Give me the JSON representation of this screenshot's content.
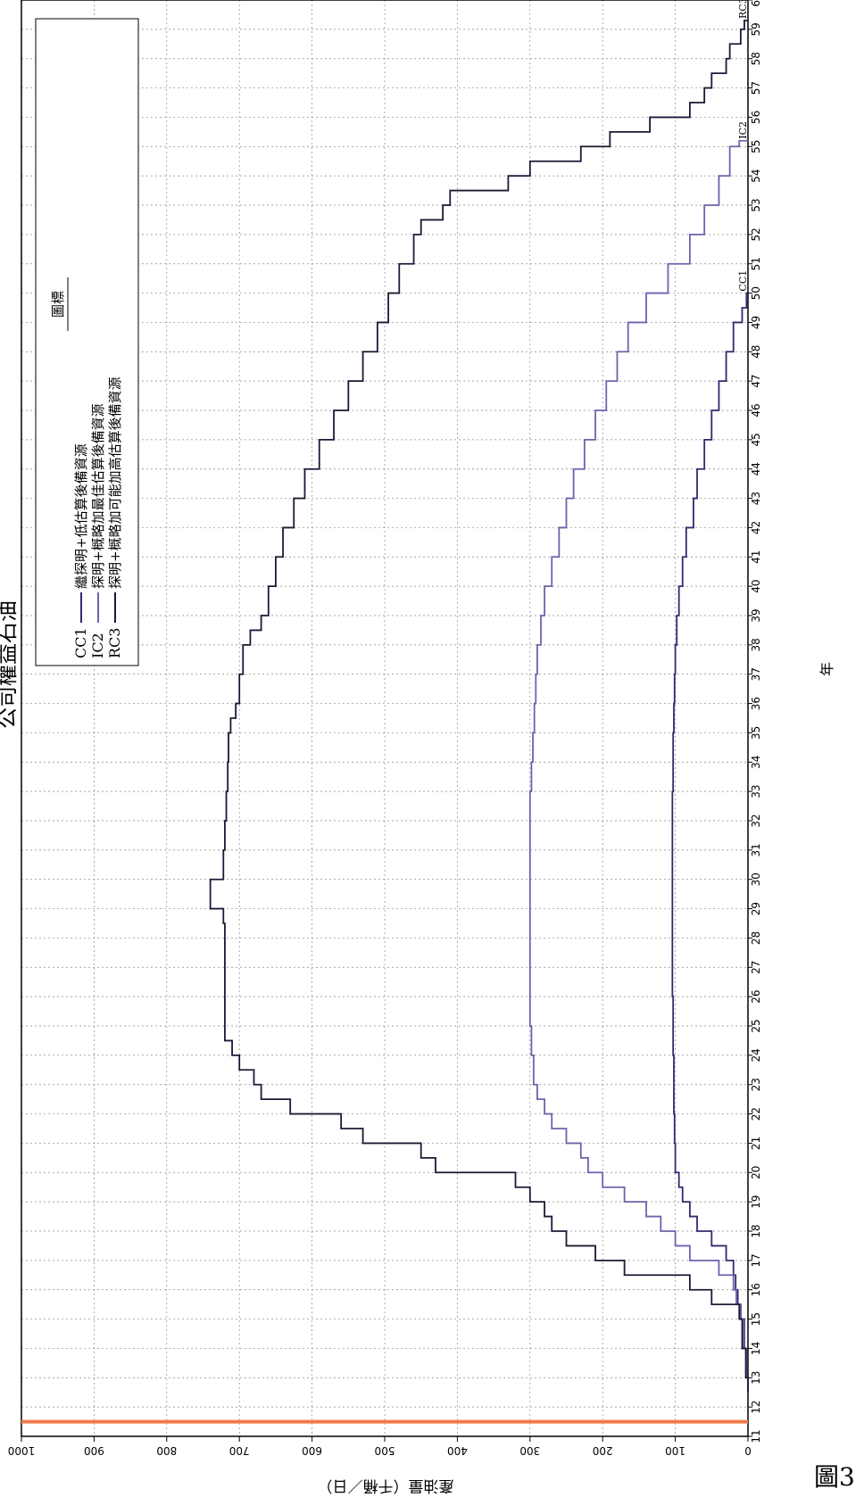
{
  "title": "公司權益石油",
  "figure_label": "圖3",
  "chart_data": {
    "type": "line",
    "orientation": "rotated-90-clockwise",
    "xlabel": "年",
    "ylabel": "產油量（千桶／日）",
    "xlim": [
      11,
      60
    ],
    "ylim": [
      0,
      1000
    ],
    "x_ticks": [
      "11",
      "12",
      "13",
      "14",
      "15",
      "16",
      "17",
      "18",
      "19",
      "20",
      "21",
      "22",
      "23",
      "24",
      "25",
      "26",
      "27",
      "28",
      "29",
      "30",
      "31",
      "32",
      "33",
      "34",
      "35",
      "36",
      "37",
      "38",
      "39",
      "40",
      "41",
      "42",
      "43",
      "44",
      "45",
      "46",
      "47",
      "48",
      "49",
      "50",
      "51",
      "52",
      "53",
      "54",
      "55",
      "56",
      "57",
      "58",
      "59",
      "60"
    ],
    "y_ticks": [
      "0",
      "100",
      "200",
      "300",
      "400",
      "500",
      "600",
      "700",
      "800",
      "900",
      "1000"
    ],
    "grid": true,
    "legend": {
      "title": "圖標",
      "placement": "top-left (rotated)",
      "entries": [
        {
          "code": "CC1",
          "desc": "繼探明+低估算後備資源"
        },
        {
          "code": "IC2",
          "desc": "探明+概略加最佳估算後備資源"
        },
        {
          "code": "RC3",
          "desc": "探明+概略加可能加高估算後備資源"
        }
      ]
    },
    "vertical_marker": {
      "x": 11.5,
      "color": "#f07a4a"
    },
    "series": [
      {
        "name": "CC1",
        "color": "#2d2b6e",
        "x": [
          12.5,
          13,
          14,
          15,
          15.5,
          16,
          16.5,
          17,
          17.5,
          18,
          18.5,
          19,
          19.5,
          20,
          21,
          22,
          23,
          24,
          25,
          26,
          27,
          28,
          29,
          30,
          31,
          32,
          33,
          34,
          35,
          36,
          37,
          38,
          39,
          40,
          41,
          42,
          43,
          44,
          45,
          46,
          47,
          48,
          49,
          49.5,
          50
        ],
        "y": [
          0,
          2,
          5,
          10,
          14,
          17,
          20,
          30,
          50,
          70,
          80,
          90,
          95,
          100,
          101,
          102,
          102,
          103,
          103,
          104,
          104,
          104,
          104,
          104,
          104,
          104,
          103,
          103,
          102,
          101,
          100,
          98,
          95,
          90,
          85,
          75,
          70,
          60,
          50,
          40,
          30,
          20,
          8,
          2,
          0
        ]
      },
      {
        "name": "IC2",
        "color": "#6a64ad",
        "x": [
          12.5,
          13,
          14,
          15,
          15.5,
          16,
          16.5,
          17,
          17.5,
          18,
          18.5,
          19,
          19.5,
          20,
          20.5,
          21,
          21.5,
          22,
          22.5,
          23,
          24,
          25,
          26,
          27,
          28,
          29,
          30,
          31,
          32,
          33,
          34,
          35,
          36,
          37,
          38,
          39,
          40,
          41,
          42,
          43,
          44,
          45,
          46,
          47,
          48,
          49,
          50,
          51,
          52,
          53,
          54,
          55,
          55.2
        ],
        "y": [
          0,
          2,
          6,
          11,
          16,
          20,
          40,
          80,
          100,
          120,
          140,
          170,
          200,
          220,
          230,
          250,
          270,
          280,
          290,
          295,
          298,
          300,
          300,
          300,
          300,
          300,
          300,
          300,
          300,
          298,
          296,
          294,
          292,
          290,
          285,
          280,
          270,
          260,
          250,
          240,
          225,
          210,
          195,
          180,
          165,
          140,
          110,
          80,
          60,
          40,
          25,
          12,
          0
        ]
      },
      {
        "name": "RC3",
        "color": "#1c1936",
        "x": [
          12.5,
          13,
          14,
          15,
          15.5,
          16,
          16.5,
          17,
          17.5,
          18,
          18.5,
          19,
          19.5,
          20,
          20.5,
          21,
          21.5,
          22,
          22.5,
          23,
          23.5,
          24,
          24.5,
          25,
          26,
          27,
          28,
          28.5,
          29,
          29.5,
          30,
          31,
          32,
          33,
          34,
          35,
          35.5,
          36,
          37,
          38,
          38.5,
          39,
          40,
          41,
          42,
          43,
          44,
          45,
          46,
          47,
          48,
          49,
          50,
          51,
          52,
          52.5,
          53,
          53.5,
          54,
          54.5,
          55,
          55.5,
          56,
          56.5,
          57,
          57.5,
          58,
          58.5,
          59,
          59.3
        ],
        "y": [
          0,
          3,
          8,
          12,
          50,
          80,
          170,
          210,
          250,
          270,
          280,
          300,
          320,
          430,
          450,
          530,
          560,
          630,
          670,
          680,
          700,
          710,
          720,
          720,
          720,
          720,
          720,
          722,
          740,
          740,
          722,
          720,
          718,
          716,
          715,
          712,
          705,
          700,
          695,
          685,
          670,
          660,
          650,
          640,
          625,
          610,
          590,
          570,
          550,
          530,
          510,
          495,
          480,
          460,
          450,
          420,
          410,
          330,
          300,
          230,
          190,
          135,
          80,
          60,
          50,
          30,
          25,
          10,
          5,
          0
        ]
      }
    ]
  }
}
